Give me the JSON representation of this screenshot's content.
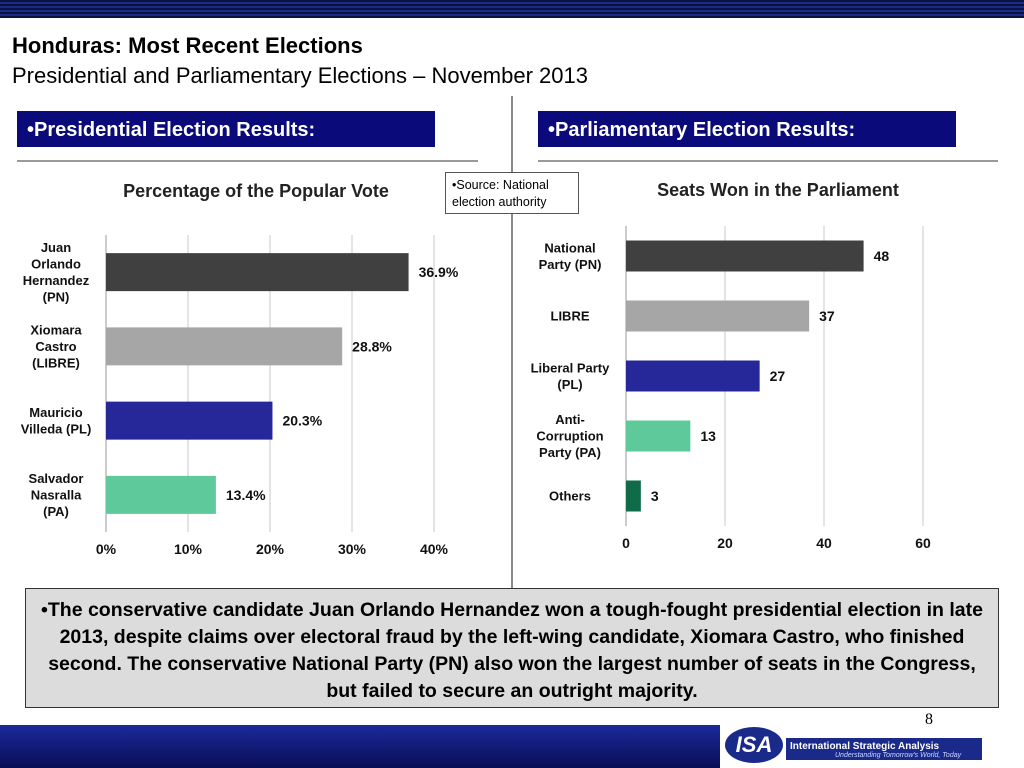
{
  "header": {
    "title": "Honduras: Most Recent Elections",
    "subtitle": "Presidential and Parliamentary Elections – November 2013"
  },
  "sections": {
    "presidential": "•Presidential Election Results:",
    "parliamentary": "•Parliamentary Election Results:"
  },
  "source_note": "•Source: National election authority",
  "chart_data": [
    {
      "type": "bar",
      "orientation": "horizontal",
      "title": "Percentage of the Popular Vote",
      "categories": [
        [
          "Juan",
          "Orlando",
          "Hernandez",
          "(PN)"
        ],
        [
          "Xiomara",
          "Castro",
          "(LIBRE)"
        ],
        [
          "Mauricio",
          "Villeda (PL)"
        ],
        [
          "Salvador",
          "Nasralla",
          "(PA)"
        ]
      ],
      "values": [
        36.9,
        28.8,
        20.3,
        13.4
      ],
      "value_labels": [
        "36.9%",
        "28.8%",
        "20.3%",
        "13.4%"
      ],
      "colors": [
        "#404040",
        "#a6a6a6",
        "#26289a",
        "#5ec99a"
      ],
      "xlim": [
        0,
        40
      ],
      "xticks": [
        "0%",
        "10%",
        "20%",
        "30%",
        "40%"
      ],
      "grid": true
    },
    {
      "type": "bar",
      "orientation": "horizontal",
      "title": "Seats Won in the Parliament",
      "categories": [
        [
          "National",
          "Party (PN)"
        ],
        [
          "LIBRE"
        ],
        [
          "Liberal Party",
          "(PL)"
        ],
        [
          "Anti-",
          "Corruption",
          "Party (PA)"
        ],
        [
          "Others"
        ]
      ],
      "values": [
        48,
        37,
        27,
        13,
        3
      ],
      "value_labels": [
        "48",
        "37",
        "27",
        "13",
        "3"
      ],
      "colors": [
        "#404040",
        "#a6a6a6",
        "#26289a",
        "#5ec99a",
        "#0f6b48"
      ],
      "xlim": [
        0,
        60
      ],
      "xticks": [
        "0",
        "20",
        "40",
        "60"
      ],
      "grid": true
    }
  ],
  "summary": "•The conservative candidate Juan Orlando Hernandez won a tough-fought presidential election in late 2013, despite claims over electoral fraud by the left-wing candidate, Xiomara Castro, who finished second.  The conservative National Party (PN) also won the largest number of seats in the Congress, but failed to secure an outright majority.",
  "page_number": "8",
  "footer": {
    "logo_text": "ISA",
    "org_name": "International Strategic Analysis",
    "tagline": "Understanding Tomorrow's World, Today"
  }
}
